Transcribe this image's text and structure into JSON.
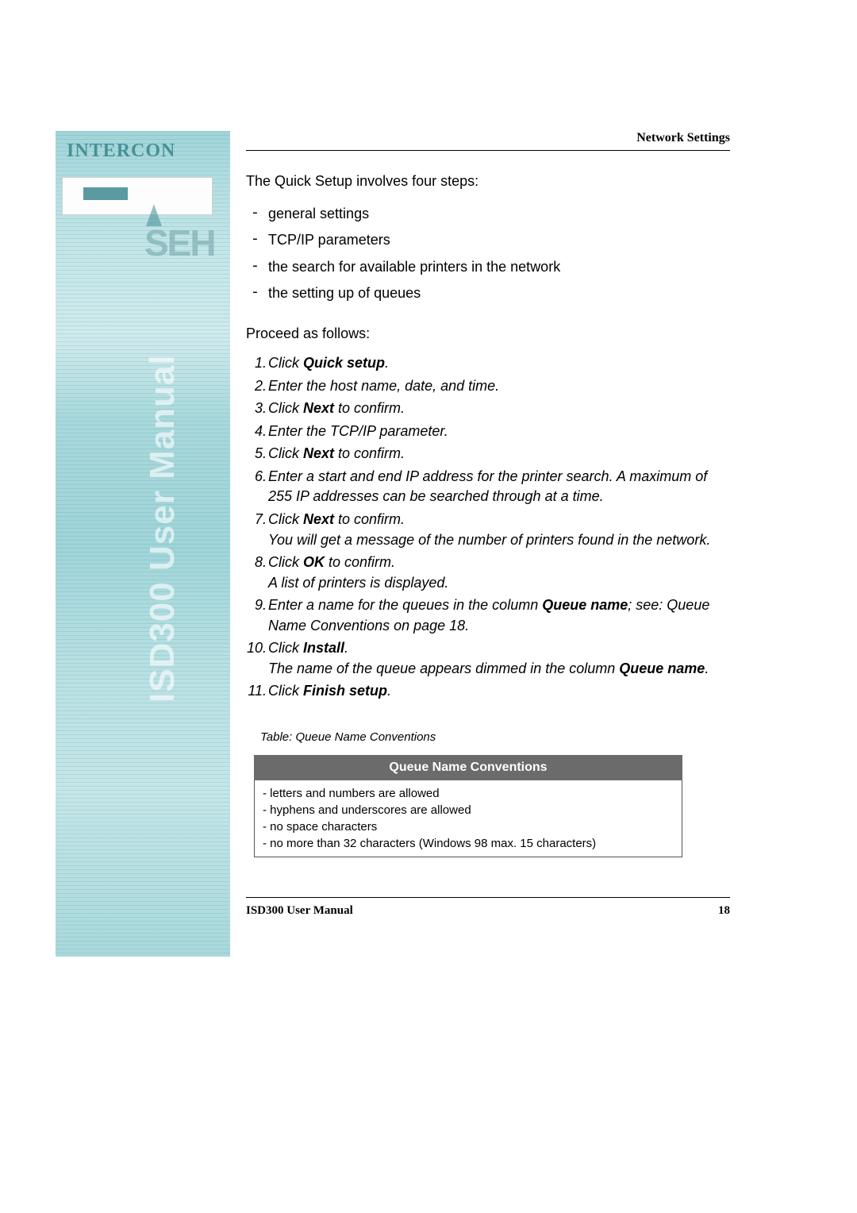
{
  "sidebar": {
    "brand_top": "INTERCON",
    "brand_mid": "SEH",
    "vertical_title": "ISD300 User Manual"
  },
  "header": {
    "section": "Network Settings"
  },
  "intro": {
    "line": "The Quick Setup involves four steps:",
    "bullets": {
      "b1": "general settings",
      "b2": "TCP/IP parameters",
      "b3": "the search for available printers in the network",
      "b4": "the setting up of queues"
    }
  },
  "proceed_label": "Proceed as follows:",
  "steps": {
    "s1_pre": "Click ",
    "s1_bold": "Quick setup",
    "s1_post": ".",
    "s2": "Enter the host name, date, and time.",
    "s3_pre": "Click ",
    "s3_bold": "Next",
    "s3_post": " to confirm.",
    "s4": "Enter the TCP/IP parameter.",
    "s5_pre": "Click ",
    "s5_bold": "Next",
    "s5_post": " to confirm.",
    "s6": "Enter a start and end IP address for the printer search. A maximum of 255 IP addresses can be searched through at a time.",
    "s7_pre": "Click ",
    "s7_bold": "Next",
    "s7_post": " to confirm.",
    "s7_extra": "You will get a message of the number of printers found in the network.",
    "s8_pre": "Click ",
    "s8_bold": "OK",
    "s8_post": " to confirm.",
    "s8_extra": "A list of printers is displayed.",
    "s9_pre": "Enter a name for the queues in the column ",
    "s9_bold": "Queue name",
    "s9_post": "; see: Queue Name Conventions on page 18.",
    "s10_pre": "Click ",
    "s10_bold": "Install",
    "s10_post": ".",
    "s10_extra_pre": "The name of the queue appears dimmed in the column ",
    "s10_extra_bold": "Queue name",
    "s10_extra_post": ".",
    "s11_pre": "Click ",
    "s11_bold": "Finish setup",
    "s11_post": "."
  },
  "table": {
    "caption": "Table: Queue Name Conventions",
    "header": "Queue Name Conventions",
    "rows": {
      "r1": "- letters and numbers are allowed",
      "r2": "- hyphens and underscores are allowed",
      "r3": "- no space characters",
      "r4": "- no more than 32 characters (Windows 98 max. 15 characters)"
    }
  },
  "footer": {
    "title": "ISD300 User Manual",
    "page": "18"
  }
}
